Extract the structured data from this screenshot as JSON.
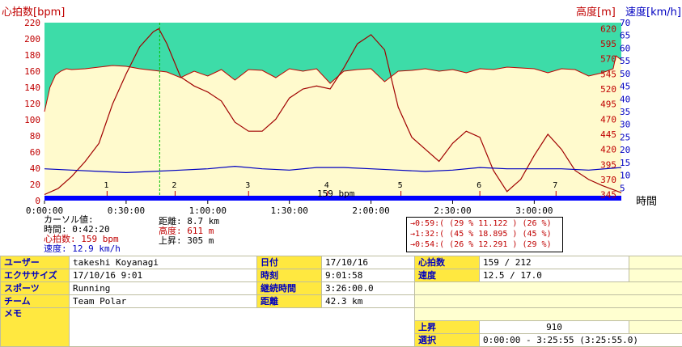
{
  "chart_data": {
    "type": "line",
    "left_axis_label": "心拍数[bpm]",
    "right_axis_label_alt": "高度[m]",
    "right_axis_label_speed": "速度[km/h]",
    "x_axis_label": "時間",
    "left_ticks": [
      "220",
      "200",
      "180",
      "160",
      "140",
      "120",
      "100",
      "80",
      "60",
      "40",
      "20",
      "0"
    ],
    "alt_ticks": [
      "620",
      "595",
      "570",
      "545",
      "520",
      "495",
      "470",
      "445",
      "420",
      "395",
      "370",
      "345"
    ],
    "speed_ticks": [
      "70",
      "65",
      "60",
      "55",
      "50",
      "45",
      "40",
      "35",
      "30",
      "25",
      "20",
      "15",
      "10",
      "5"
    ],
    "x_ticks": [
      "0:00:00",
      "0:30:00",
      "1:00:00",
      "1:30:00",
      "2:00:00",
      "2:30:00",
      "3:00:00"
    ],
    "x_range_min": [
      0,
      212
    ],
    "hr_range": [
      0,
      220
    ],
    "alt_range": [
      335,
      630
    ],
    "speed_range": [
      0,
      70
    ],
    "zone_bpm": [
      140,
      220
    ],
    "lap_markers": [
      "1",
      "2",
      "3",
      "4",
      "5",
      "6",
      "7"
    ],
    "lap_times_min": [
      23,
      48,
      75,
      104,
      131,
      160,
      188
    ],
    "cursor_min": 42.33,
    "cursor_label": "159 bpm",
    "colors": {
      "hr_fill": "#fffacd",
      "zone": "#3ddca8",
      "altitude": "#a00000",
      "speed": "#0000c0",
      "hr_line": "#c00000",
      "cursor": "#00c000",
      "axis_bar": "#0000ff"
    },
    "series": [
      {
        "name": "心拍数",
        "x": [
          0,
          2,
          4,
          6,
          8,
          10,
          15,
          20,
          25,
          30,
          35,
          40,
          45,
          50,
          55,
          60,
          65,
          70,
          75,
          80,
          85,
          90,
          95,
          100,
          105,
          110,
          115,
          120,
          125,
          130,
          135,
          140,
          145,
          150,
          155,
          160,
          165,
          170,
          175,
          180,
          185,
          190,
          195,
          200,
          205,
          209,
          210,
          212
        ],
        "values": [
          110,
          140,
          155,
          160,
          163,
          162,
          163,
          165,
          167,
          166,
          163,
          161,
          159,
          152,
          160,
          154,
          162,
          149,
          162,
          161,
          152,
          163,
          160,
          163,
          145,
          160,
          162,
          163,
          147,
          160,
          161,
          163,
          160,
          162,
          158,
          163,
          162,
          165,
          164,
          163,
          158,
          163,
          162,
          154,
          158,
          163,
          179,
          174
        ]
      },
      {
        "name": "高度",
        "x": [
          0,
          5,
          10,
          15,
          20,
          25,
          30,
          35,
          40,
          42,
          45,
          50,
          55,
          60,
          65,
          70,
          75,
          80,
          85,
          90,
          95,
          100,
          105,
          110,
          115,
          120,
          125,
          130,
          135,
          140,
          145,
          150,
          155,
          160,
          165,
          170,
          175,
          180,
          185,
          190,
          195,
          200,
          205,
          212
        ],
        "values": [
          345,
          355,
          375,
          400,
          430,
          495,
          545,
          590,
          615,
          620,
          595,
          540,
          525,
          515,
          500,
          465,
          450,
          450,
          470,
          505,
          520,
          525,
          520,
          555,
          595,
          610,
          585,
          490,
          440,
          420,
          400,
          430,
          450,
          440,
          385,
          350,
          370,
          410,
          445,
          420,
          385,
          370,
          360,
          348
        ]
      },
      {
        "name": "速度",
        "x": [
          0,
          10,
          20,
          30,
          40,
          50,
          60,
          70,
          80,
          90,
          100,
          110,
          120,
          130,
          140,
          150,
          160,
          170,
          180,
          190,
          200,
          212
        ],
        "values": [
          12.5,
          12,
          11.5,
          11,
          11.5,
          12,
          12.5,
          13.5,
          12.5,
          12,
          13,
          13,
          12.5,
          12,
          11.5,
          12,
          13,
          12.5,
          12.5,
          12.5,
          12,
          13
        ]
      }
    ]
  },
  "cursor": {
    "title": "カーソル値:",
    "time": "時間: 0:42:20",
    "hr": "心拍数: 159 bpm",
    "speed": "速度: 12.9 km/h",
    "distance": "距離: 8.7 km",
    "altitude": "高度: 611 m",
    "ascent": "上昇: 305 m"
  },
  "laps": [
    "→0:59:(  (29 % 11.122 )  (26 %)",
    "→1:32:(  (45 % 18.895 )  (45 %)",
    "→0:54:(  (26 % 12.291 )  (29 %)"
  ],
  "info": {
    "user_label": "ユーザー",
    "user_value": "takeshi Koyanagi",
    "exercise_label": "エクササイズ",
    "exercise_value": "17/10/16 9:01",
    "sport_label": "スポーツ",
    "sport_value": "Running",
    "team_label": "チーム",
    "team_value": "Team Polar",
    "memo_label": "メモ",
    "date_label": "日付",
    "date_value": "17/10/16",
    "time_label": "時刻",
    "time_value": "9:01:58",
    "duration_label": "継続時間",
    "duration_value": "3:26:00.0",
    "distance_label": "距離",
    "distance_value": "42.3 km",
    "hr_label": "心拍数",
    "hr_value": "159 / 212",
    "speed_label": "速度",
    "speed_value": "12.5 / 17.0",
    "ascent_label": "上昇",
    "ascent_value": "910",
    "select_label": "選択",
    "select_value": "0:00:00 - 3:25:55 (3:25:55.0)"
  }
}
